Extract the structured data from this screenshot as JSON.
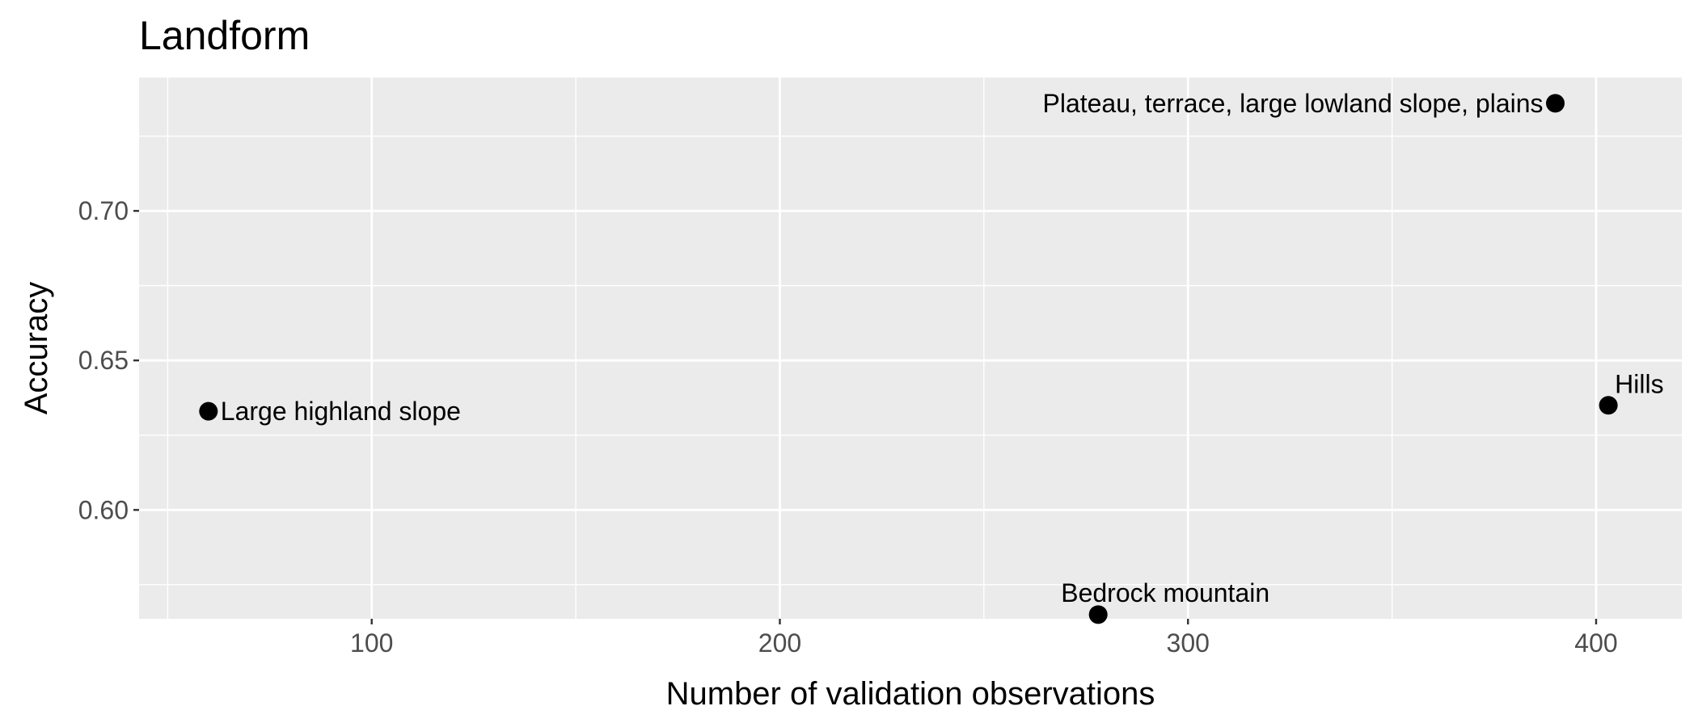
{
  "chart_data": {
    "type": "scatter",
    "title": "Landform",
    "xlabel": "Number of validation observations",
    "ylabel": "Accuracy",
    "xlim": [
      43,
      421
    ],
    "ylim": [
      0.5636,
      0.7446
    ],
    "x_ticks": [
      100,
      200,
      300,
      400
    ],
    "x_tick_labels": [
      "100",
      "200",
      "300",
      "400"
    ],
    "x_minor_ticks": [
      50,
      150,
      250,
      350
    ],
    "y_ticks": [
      0.6,
      0.65,
      0.7
    ],
    "y_tick_labels": [
      "0.60",
      "0.65",
      "0.70"
    ],
    "y_minor_ticks": [
      0.575,
      0.625,
      0.675,
      0.725
    ],
    "grid": true,
    "legend": false,
    "colors": {
      "panel": "#ebebeb",
      "grid": "#ffffff",
      "point": "#000000",
      "tick": "#333333"
    },
    "points": [
      {
        "x": 60,
        "y": 0.633,
        "label": "Large highland slope",
        "label_pos": "right"
      },
      {
        "x": 278,
        "y": 0.565,
        "label": "Bedrock mountain",
        "label_pos": "top"
      },
      {
        "x": 390,
        "y": 0.736,
        "label": "Plateau, terrace, large lowland slope, plains",
        "label_pos": "left"
      },
      {
        "x": 403,
        "y": 0.635,
        "label": "Hills",
        "label_pos": "top-right"
      }
    ]
  }
}
